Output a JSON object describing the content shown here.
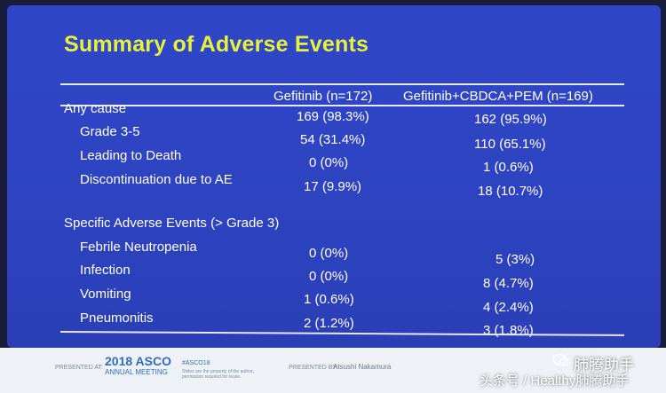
{
  "slide": {
    "title": "Summary of Adverse Events",
    "columns": [
      "Gefitinib (n=172)",
      "Gefitinib+CBDCA+PEM (n=169)"
    ],
    "rows": [
      {
        "label": "Any cause",
        "col1": "169 (98.3%)",
        "col2": "162 (95.9%)"
      },
      {
        "label": "Grade 3-5",
        "col1": "54 (31.4%)",
        "col2": "110 (65.1%)"
      },
      {
        "label": "Leading to Death",
        "col1": "0 (0%)",
        "col2": "1 (0.6%)"
      },
      {
        "label": "Discontinuation due to AE",
        "col1": "17 (9.9%)",
        "col2": "18 (10.7%)"
      },
      {
        "label": "Specific Adverse Events (> Grade 3)",
        "col1": "",
        "col2": ""
      },
      {
        "label": "Febrile Neutropenia",
        "col1": "0 (0%)",
        "col2": "5 (3%)"
      },
      {
        "label": "Infection",
        "col1": "0 (0%)",
        "col2": "8 (4.7%)"
      },
      {
        "label": "Vomiting",
        "col1": "1 (0.6%)",
        "col2": "4 (2.4%)"
      },
      {
        "label": "Pneumonitis",
        "col1": "2 (1.2%)",
        "col2": "3 (1.8%)"
      }
    ]
  },
  "footer": {
    "presented_at": "PRESENTED AT:",
    "meeting_year": "2018",
    "meeting_name": "ASCO",
    "meeting_sub": "ANNUAL MEETING",
    "hashtag": "#ASCO18",
    "notice": "Slides are the property of the author, permission required for reuse.",
    "presented_by_label": "PRESENTED BY:",
    "presenter": "Atsushi Nakamura"
  },
  "watermark": {
    "line1": "肺腾助手",
    "line2": "头条号 / Healthy肺腾助手"
  }
}
